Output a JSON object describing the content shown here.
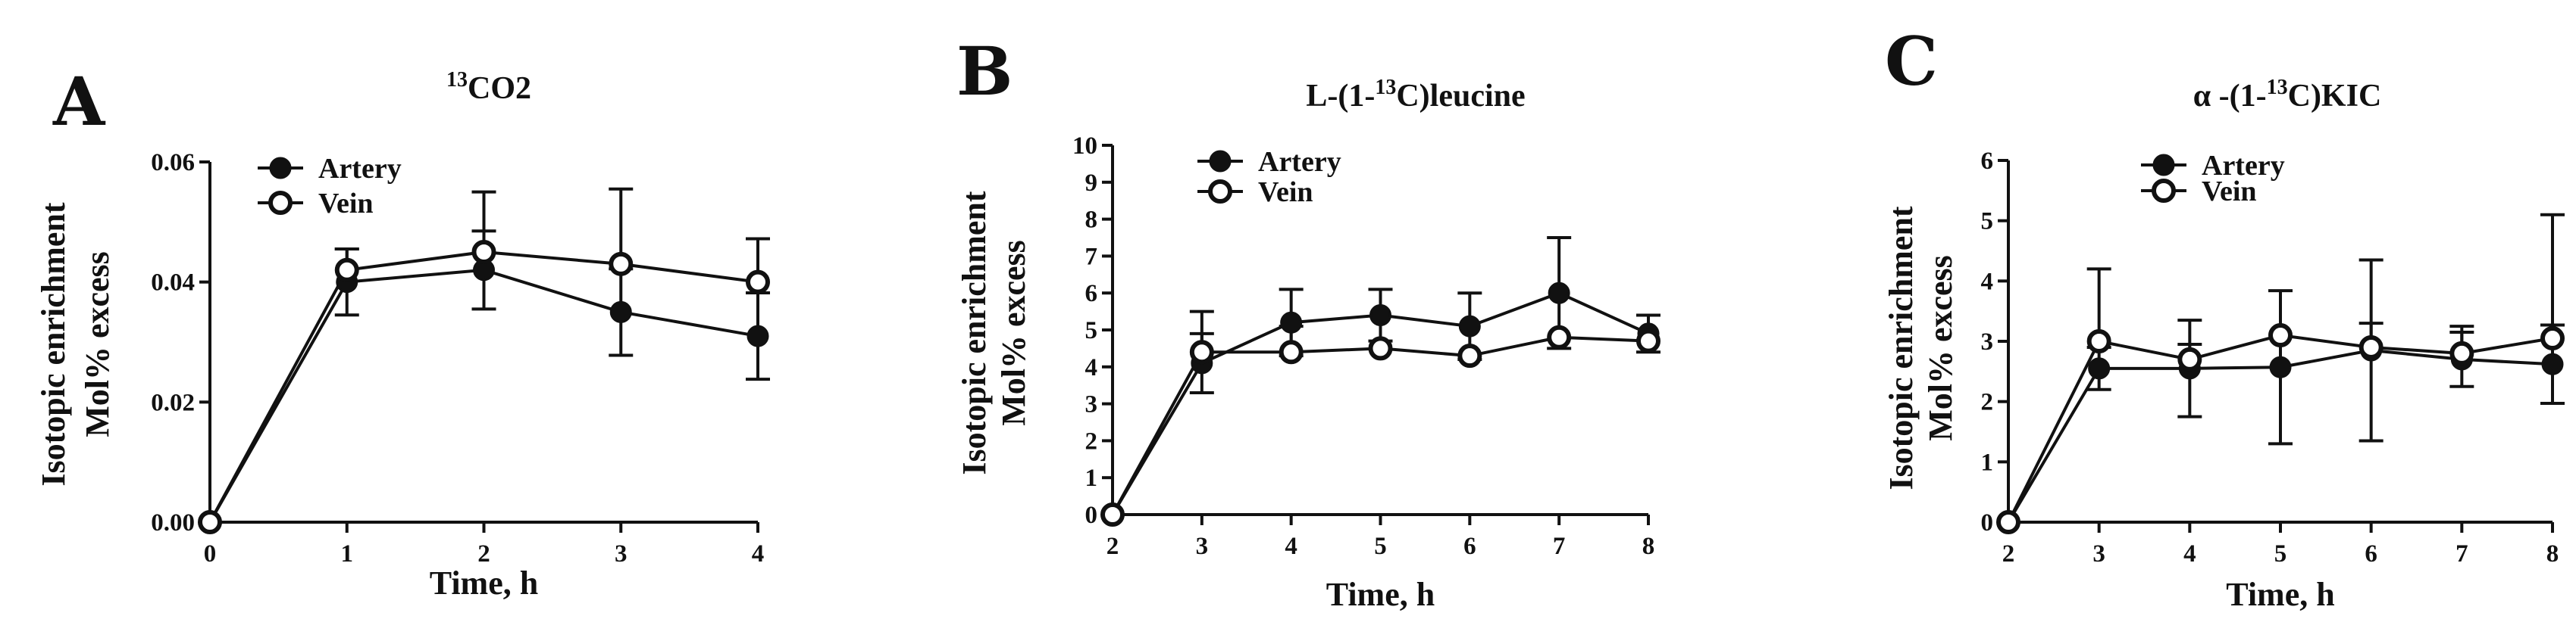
{
  "chart_data": [
    {
      "type": "line",
      "panel": "A",
      "title_main": "CO2",
      "title_sup": "13",
      "title_pre": "",
      "title_post": "",
      "xlabel": "Time, h",
      "ylabel_lines": [
        "Isotopic enrichment",
        "Mol% excess"
      ],
      "x": [
        0,
        1,
        2,
        3,
        4
      ],
      "xlim": [
        0,
        4
      ],
      "ylim": [
        0,
        0.06
      ],
      "xticks": [
        "0",
        "1",
        "2",
        "3",
        "4"
      ],
      "yticks": [
        0.0,
        0.02,
        0.04,
        0.06
      ],
      "ytick_labels": [
        "0.00",
        "0.02",
        "0.04",
        "0.06"
      ],
      "series": [
        {
          "name": "Artery",
          "marker": "filled",
          "values": [
            0,
            0.04,
            0.042,
            0.035,
            0.031
          ],
          "errors": [
            0,
            0.0055,
            0.0065,
            0.0072,
            0.0072
          ]
        },
        {
          "name": "Vein",
          "marker": "open",
          "values": [
            0,
            0.042,
            0.045,
            0.043,
            0.04
          ],
          "errors": [
            0,
            0.0035,
            0.01,
            0.0125,
            0.0072
          ]
        }
      ],
      "legend": [
        "Artery",
        "Vein"
      ]
    },
    {
      "type": "line",
      "panel": "B",
      "title_pre": "L-(1-",
      "title_sup": "13",
      "title_post": "C)leucine",
      "title_main": "",
      "xlabel": "Time, h",
      "ylabel_lines": [
        "Isotopic enrichment",
        "Mol% excess"
      ],
      "x": [
        2,
        3,
        4,
        5,
        6,
        7,
        8
      ],
      "xlim": [
        2,
        8
      ],
      "ylim": [
        0,
        10
      ],
      "xticks": [
        "2",
        "3",
        "4",
        "5",
        "6",
        "7",
        "8"
      ],
      "yticks": [
        0,
        1,
        2,
        3,
        4,
        5,
        6,
        7,
        8,
        9,
        10
      ],
      "ytick_labels": [
        "0",
        "1",
        "2",
        "3",
        "4",
        "5",
        "6",
        "7",
        "8",
        "9",
        "10"
      ],
      "series": [
        {
          "name": "Artery",
          "marker": "filled",
          "values": [
            0,
            4.1,
            5.2,
            5.4,
            5.1,
            6.0,
            4.9
          ],
          "errors": [
            0,
            0.8,
            0.9,
            0.7,
            0.9,
            1.5,
            0.5
          ]
        },
        {
          "name": "Vein",
          "marker": "open",
          "values": [
            0,
            4.4,
            4.4,
            4.5,
            4.3,
            4.8,
            4.7
          ],
          "errors": [
            0,
            1.1,
            0.7,
            0,
            0,
            0,
            0
          ]
        }
      ],
      "legend": [
        "Artery",
        "Vein"
      ]
    },
    {
      "type": "line",
      "panel": "C",
      "title_pre": "α -(1-",
      "title_sup": "13",
      "title_post": "C)KIC",
      "title_main": "",
      "xlabel": "Time, h",
      "ylabel_lines": [
        "Isotopic enrichment",
        "Mol% excess"
      ],
      "x": [
        2,
        3,
        4,
        5,
        6,
        7,
        8
      ],
      "xlim": [
        2,
        8
      ],
      "ylim": [
        0,
        6
      ],
      "xticks": [
        "2",
        "3",
        "4",
        "5",
        "6",
        "7",
        "8"
      ],
      "yticks": [
        0,
        1,
        2,
        3,
        4,
        5,
        6
      ],
      "ytick_labels": [
        "0",
        "1",
        "2",
        "3",
        "4",
        "5",
        "6"
      ],
      "series": [
        {
          "name": "Artery",
          "marker": "filled",
          "values": [
            0,
            2.55,
            2.55,
            2.57,
            2.85,
            2.7,
            2.62
          ],
          "errors": [
            0,
            0.35,
            0.8,
            1.27,
            1.5,
            0.45,
            0.65
          ]
        },
        {
          "name": "Vein",
          "marker": "open",
          "values": [
            0,
            3.0,
            2.7,
            3.1,
            2.9,
            2.8,
            3.05
          ],
          "errors": [
            0,
            1.2,
            0.25,
            0,
            0.4,
            0.45,
            2.05
          ]
        }
      ],
      "legend": [
        "Artery",
        "Vein"
      ]
    }
  ]
}
